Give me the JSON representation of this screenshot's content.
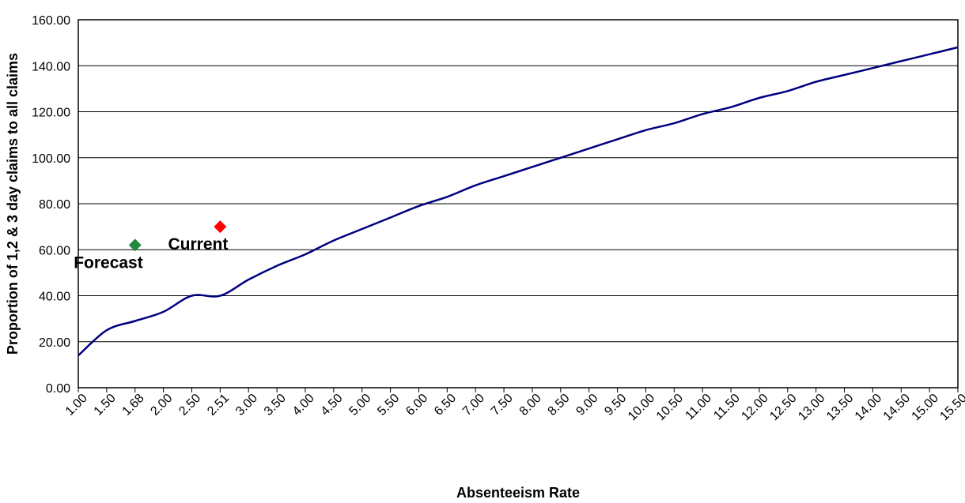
{
  "chart_data": {
    "type": "line",
    "xlabel": "Absenteeism Rate",
    "ylabel": "Proportion of 1,2 & 3 day claims to all claims",
    "ylim": [
      0,
      160
    ],
    "yticks": [
      "0.00",
      "20.00",
      "40.00",
      "60.00",
      "80.00",
      "100.00",
      "120.00",
      "140.00",
      "160.00"
    ],
    "categories": [
      "1.00",
      "1.50",
      "1.68",
      "2.00",
      "2.50",
      "2.51",
      "3.00",
      "3.50",
      "4.00",
      "4.50",
      "5.00",
      "5.50",
      "6.00",
      "6.50",
      "7.00",
      "7.50",
      "8.00",
      "8.50",
      "9.00",
      "9.50",
      "10.00",
      "10.50",
      "11.00",
      "11.50",
      "12.00",
      "12.50",
      "13.00",
      "13.50",
      "14.00",
      "14.50",
      "15.00",
      "15.50"
    ],
    "grid": "horizontal",
    "legend": "none",
    "series": [
      {
        "kind": "curve",
        "color": "#000080",
        "values": [
          14,
          25,
          29,
          33,
          40,
          40,
          47,
          53,
          58,
          64,
          69,
          74,
          79,
          83,
          88,
          92,
          96,
          100,
          104,
          108,
          112,
          115,
          119,
          122,
          126,
          129,
          133,
          136,
          139,
          142,
          145,
          148
        ]
      },
      {
        "kind": "point",
        "name": "Forecast",
        "category": "1.68",
        "value": 62,
        "color": "#1e8a3e",
        "label_position": "below-left"
      },
      {
        "kind": "point",
        "name": "Current",
        "category": "2.51",
        "value": 70,
        "color": "#ff0000",
        "label_position": "below-left"
      }
    ]
  }
}
